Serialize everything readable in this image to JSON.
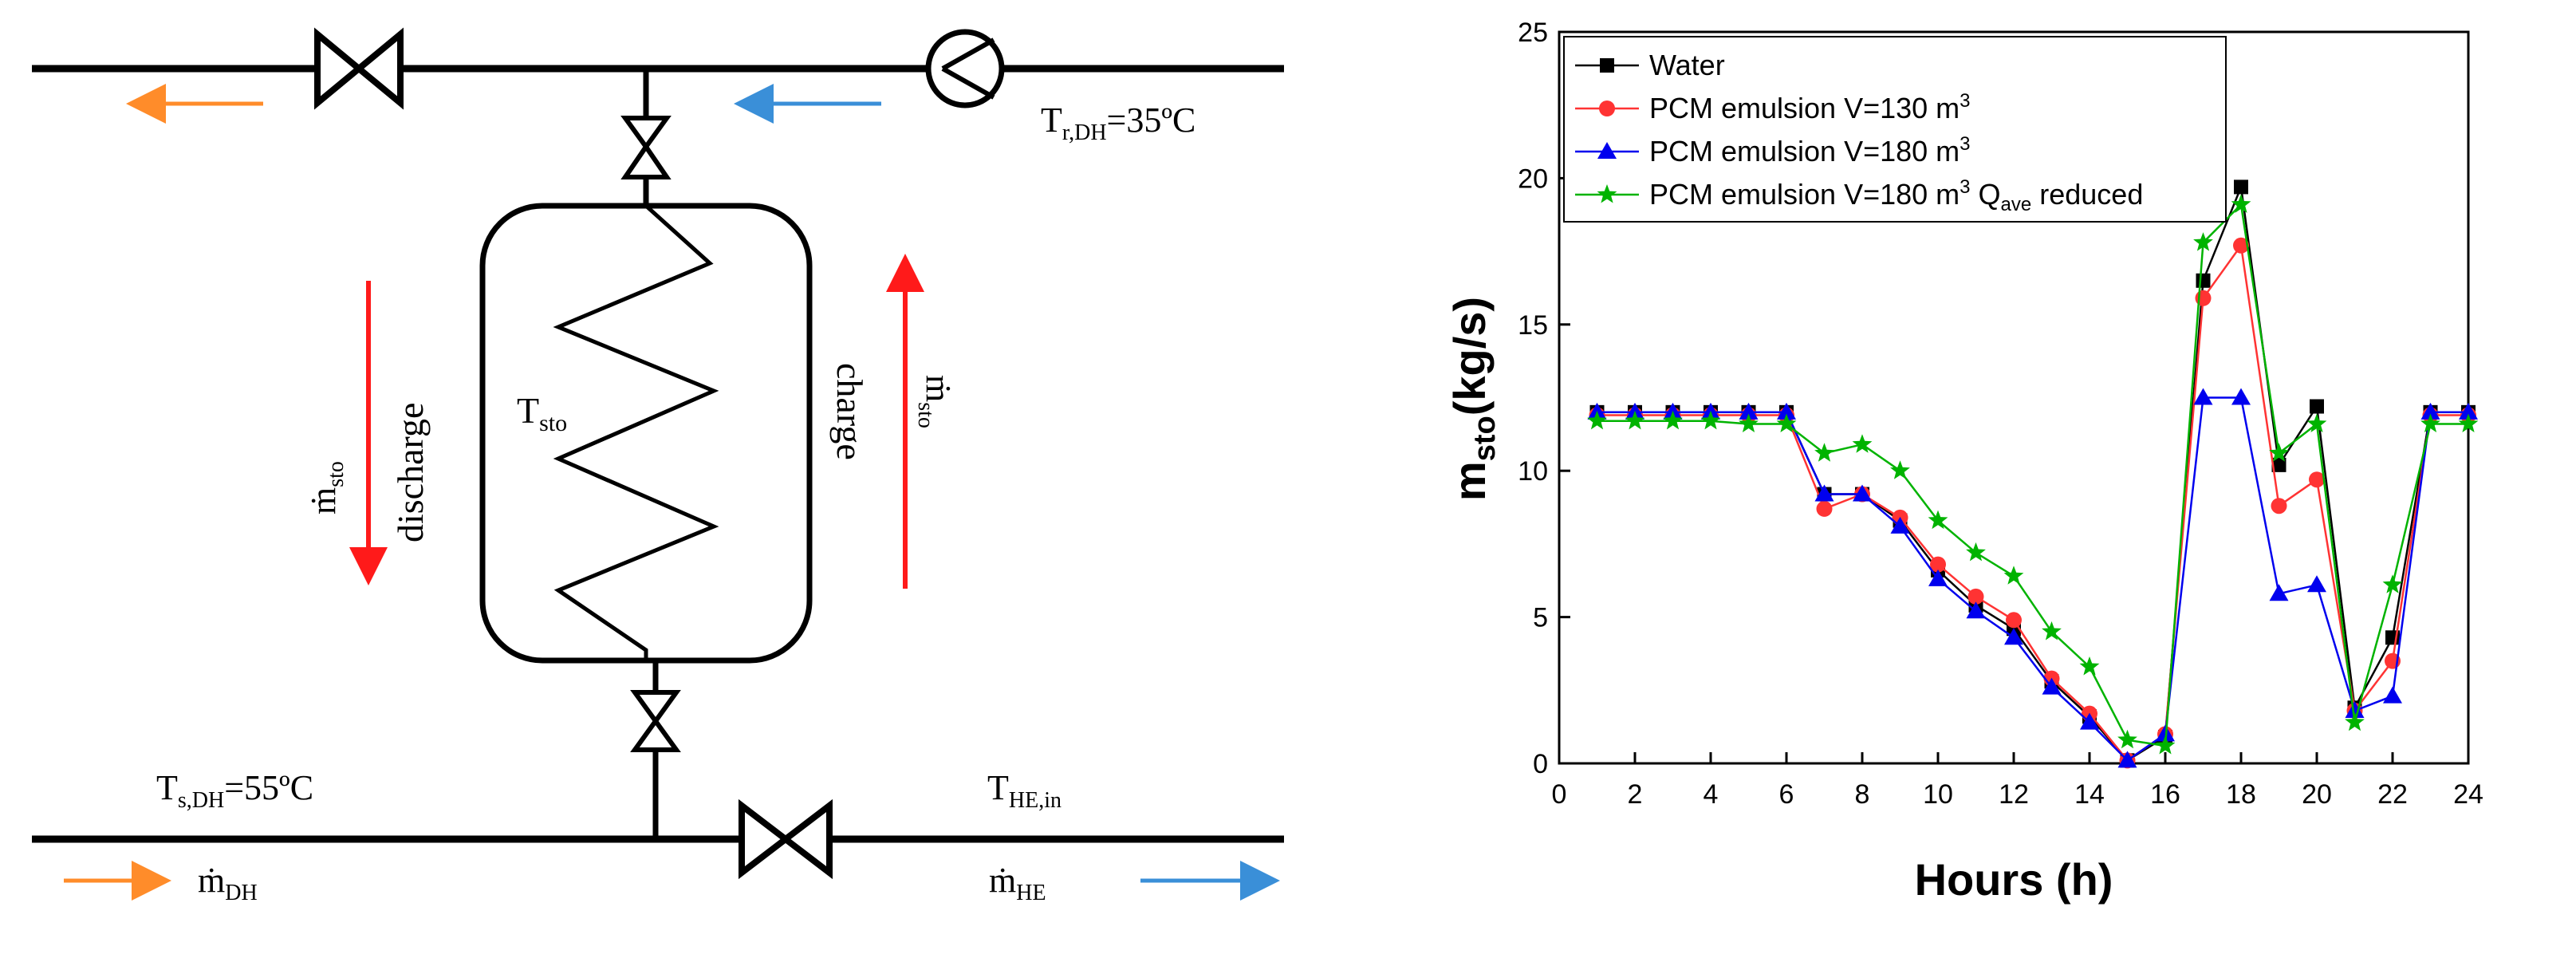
{
  "colors": {
    "water": "#000000",
    "pcm130": "#ff3333",
    "pcm180": "#0000ee",
    "pcm180q": "#00b300",
    "orange_arrow": "#ff8c2a",
    "blue_arrow": "#3a8fd8",
    "red_arrow": "#ff1a1a"
  },
  "diagram": {
    "t_return": "T",
    "t_return_sub": "r,DH",
    "t_return_val": "=35ºC",
    "t_sto": "T",
    "t_sto_sub": "sto",
    "t_supply": "T",
    "t_supply_sub": "s,DH",
    "t_supply_val": "=55ºC",
    "t_he_in": "T",
    "t_he_in_sub": "HE,in",
    "discharge": "discharge",
    "charge": "charge",
    "m_sto_left": "ṁ",
    "m_sto_left_sub": "sto",
    "m_sto_right": "ṁ",
    "m_sto_right_sub": "sto",
    "m_dh": "ṁ",
    "m_dh_sub": "DH",
    "m_he": "ṁ",
    "m_he_sub": "HE"
  },
  "chart_data": {
    "type": "line",
    "title": "",
    "xlabel": "Hours (h)",
    "ylabel_main": "m",
    "ylabel_sub": "sto",
    "ylabel_tail": "(kg/s)",
    "xlim": [
      0,
      24
    ],
    "ylim": [
      0,
      25
    ],
    "xticks": [
      0,
      2,
      4,
      6,
      8,
      10,
      12,
      14,
      16,
      18,
      20,
      22,
      24
    ],
    "yticks": [
      0,
      5,
      10,
      15,
      20,
      25
    ],
    "x": [
      1,
      2,
      3,
      4,
      5,
      6,
      7,
      8,
      9,
      10,
      11,
      12,
      13,
      14,
      15,
      16,
      17,
      18,
      19,
      20,
      21,
      22,
      23,
      24
    ],
    "legend_position": "top-left",
    "series": [
      {
        "key": "water",
        "marker": "square",
        "name": "Water",
        "name_sup": "",
        "name_tail": "",
        "values": [
          12.0,
          12.0,
          12.0,
          12.0,
          12.0,
          12.0,
          9.2,
          9.2,
          8.3,
          6.6,
          5.4,
          4.6,
          2.8,
          1.6,
          0.1,
          0.9,
          16.5,
          19.7,
          10.2,
          12.2,
          1.9,
          4.3,
          12.0,
          12.0
        ]
      },
      {
        "key": "pcm130",
        "marker": "circle",
        "name": "PCM emulsion V=130 m",
        "name_sup": "3",
        "name_tail": "",
        "values": [
          11.9,
          11.9,
          11.9,
          11.9,
          11.9,
          11.9,
          8.7,
          9.2,
          8.4,
          6.8,
          5.7,
          4.9,
          2.9,
          1.7,
          0.1,
          1.0,
          15.9,
          17.7,
          8.8,
          9.7,
          1.8,
          3.5,
          11.9,
          11.9
        ]
      },
      {
        "key": "pcm180",
        "marker": "triangle",
        "name": "PCM emulsion V=180 m",
        "name_sup": "3",
        "name_tail": "",
        "values": [
          12.0,
          12.0,
          12.0,
          12.0,
          12.0,
          12.0,
          9.2,
          9.2,
          8.1,
          6.3,
          5.2,
          4.3,
          2.6,
          1.4,
          0.1,
          1.0,
          12.5,
          12.5,
          5.8,
          6.1,
          1.8,
          2.3,
          12.0,
          12.0
        ]
      },
      {
        "key": "pcm180q",
        "marker": "star",
        "name": "PCM emulsion V=180 m",
        "name_sup": "3",
        "name_tail": " Q",
        "name_sub": "ave",
        "name_end": " reduced",
        "values": [
          11.7,
          11.7,
          11.7,
          11.7,
          11.6,
          11.6,
          10.6,
          10.9,
          10.0,
          8.3,
          7.2,
          6.4,
          4.5,
          3.3,
          0.8,
          0.6,
          17.8,
          19.1,
          10.6,
          11.6,
          1.4,
          6.1,
          11.6,
          11.6
        ]
      }
    ]
  }
}
